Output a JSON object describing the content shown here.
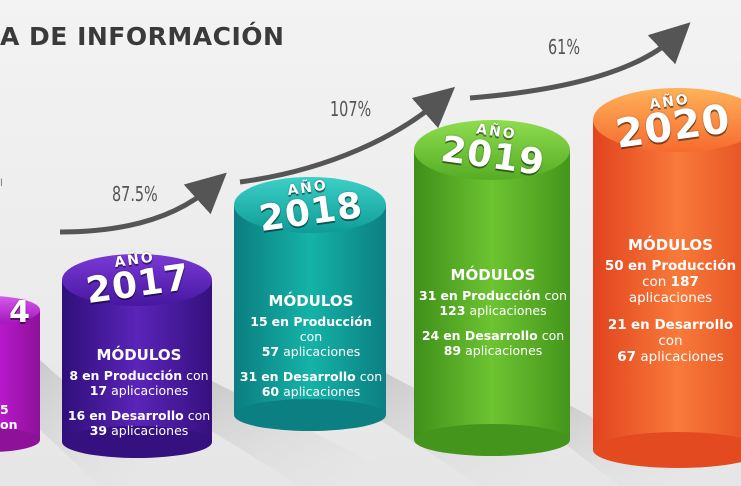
{
  "title": "A DE INFORMACIÓN",
  "side_note": "l",
  "growth": [
    {
      "label": "87.5%"
    },
    {
      "label": "107%"
    },
    {
      "label": "61%"
    }
  ],
  "colors": {
    "c2016": "#b016c8",
    "c2017": "#4b1aa8",
    "c2018": "#10a7a2",
    "c2019": "#5cb82a",
    "c2020": "#f25e2e"
  },
  "cylinders": [
    {
      "prefix": "AÑO",
      "year": "2017",
      "heading": "MÓDULOS",
      "prod_count": "8",
      "prod_text": "en Producción",
      "prod_con": "con",
      "prod_apps": "17",
      "prod_apps_text": "aplicaciones",
      "dev_count": "16",
      "dev_text": "en Desarrollo",
      "dev_con": "con",
      "dev_apps": "39",
      "dev_apps_text": "aplicaciones"
    },
    {
      "prefix": "AÑO",
      "year": "2018",
      "heading": "MÓDULOS",
      "prod_count": "15",
      "prod_text": "en Producción",
      "prod_con": "con",
      "prod_apps": "57",
      "prod_apps_text": "aplicaciones",
      "dev_count": "31",
      "dev_text": "en Desarrollo",
      "dev_con": "con",
      "dev_apps": "60",
      "dev_apps_text": "aplicaciones"
    },
    {
      "prefix": "AÑO",
      "year": "2019",
      "heading": "MÓDULOS",
      "prod_count": "31",
      "prod_text": "en Producción",
      "prod_con": "con",
      "prod_apps": "123",
      "prod_apps_text": "aplicaciones",
      "dev_count": "24",
      "dev_text": "en Desarrollo",
      "dev_con": "con",
      "dev_apps": "89",
      "dev_apps_text": "aplicaciones"
    },
    {
      "prefix": "AÑO",
      "year": "2020",
      "heading": "MÓDULOS",
      "prod_count": "50",
      "prod_text": "en Producción",
      "prod_con": "con",
      "prod_apps": "187",
      "prod_apps_text": "aplicaciones",
      "dev_count": "21",
      "dev_text": "en Desarrollo",
      "dev_con": "con",
      "dev_apps": "67",
      "dev_apps_text": "aplicaciones"
    }
  ],
  "partial_left": {
    "year_fragment": "4",
    "line1": "5",
    "line2": "on"
  }
}
